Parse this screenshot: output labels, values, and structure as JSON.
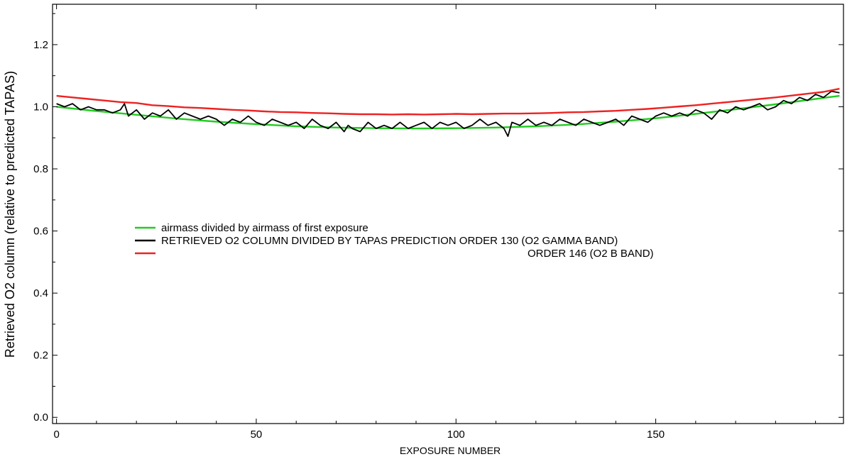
{
  "chart_data": {
    "type": "line",
    "xlabel": "EXPOSURE NUMBER",
    "ylabel": "Retrieved O2 column (relative to predicted TAPAS)",
    "xlim": [
      -1,
      197
    ],
    "ylim": [
      -0.02,
      1.33
    ],
    "xticks": [
      0,
      50,
      100,
      150
    ],
    "yticks": [
      0.0,
      0.2,
      0.4,
      0.6,
      0.8,
      1.0,
      1.2
    ],
    "xtick_labels": [
      "0",
      "50",
      "100",
      "150"
    ],
    "ytick_labels": [
      "0.0",
      "0.2",
      "0.4",
      "0.6",
      "0.8",
      "1.0",
      "1.2"
    ],
    "grid": false,
    "legend_position": "center-left",
    "series": [
      {
        "name": "airmass divided by airmass of first exposure",
        "color": "#22cc22",
        "x": [
          0,
          10,
          20,
          30,
          40,
          50,
          60,
          70,
          80,
          90,
          100,
          110,
          120,
          130,
          140,
          150,
          160,
          170,
          180,
          190,
          196
        ],
        "values": [
          1.0,
          0.986,
          0.974,
          0.962,
          0.952,
          0.944,
          0.937,
          0.933,
          0.931,
          0.93,
          0.931,
          0.933,
          0.937,
          0.943,
          0.952,
          0.963,
          0.977,
          0.992,
          1.008,
          1.025,
          1.035
        ]
      },
      {
        "name": "RETRIEVED O2 COLUMN DIVIDED BY TAPAS PREDICTION ORDER 130 (O2 GAMMA BAND)",
        "color": "#000000",
        "x": [
          0,
          2,
          4,
          6,
          8,
          10,
          12,
          14,
          16,
          17,
          18,
          20,
          22,
          24,
          26,
          28,
          30,
          32,
          34,
          36,
          38,
          40,
          42,
          44,
          46,
          48,
          50,
          52,
          54,
          56,
          58,
          60,
          62,
          64,
          66,
          68,
          70,
          72,
          73,
          74,
          76,
          78,
          80,
          82,
          84,
          86,
          88,
          90,
          92,
          94,
          96,
          98,
          100,
          102,
          104,
          106,
          108,
          110,
          112,
          113,
          114,
          116,
          118,
          120,
          122,
          124,
          126,
          128,
          130,
          132,
          134,
          136,
          138,
          140,
          142,
          144,
          146,
          148,
          150,
          152,
          154,
          156,
          158,
          160,
          162,
          164,
          166,
          168,
          170,
          172,
          174,
          176,
          178,
          180,
          182,
          184,
          186,
          188,
          190,
          192,
          194,
          196
        ],
        "values": [
          1.01,
          1.0,
          1.01,
          0.99,
          1.0,
          0.99,
          0.99,
          0.98,
          0.99,
          1.01,
          0.97,
          0.99,
          0.96,
          0.98,
          0.97,
          0.99,
          0.96,
          0.98,
          0.97,
          0.96,
          0.97,
          0.96,
          0.94,
          0.96,
          0.95,
          0.97,
          0.95,
          0.94,
          0.96,
          0.95,
          0.94,
          0.95,
          0.93,
          0.96,
          0.94,
          0.93,
          0.95,
          0.92,
          0.94,
          0.93,
          0.92,
          0.95,
          0.93,
          0.94,
          0.93,
          0.95,
          0.93,
          0.94,
          0.95,
          0.93,
          0.95,
          0.94,
          0.95,
          0.93,
          0.94,
          0.96,
          0.94,
          0.95,
          0.93,
          0.905,
          0.95,
          0.94,
          0.96,
          0.94,
          0.95,
          0.94,
          0.96,
          0.95,
          0.94,
          0.96,
          0.95,
          0.94,
          0.95,
          0.96,
          0.94,
          0.97,
          0.96,
          0.95,
          0.97,
          0.98,
          0.97,
          0.98,
          0.97,
          0.99,
          0.98,
          0.96,
          0.99,
          0.98,
          1.0,
          0.99,
          1.0,
          1.01,
          0.99,
          1.0,
          1.02,
          1.01,
          1.03,
          1.02,
          1.04,
          1.03,
          1.05,
          1.045
        ]
      },
      {
        "name": "ORDER 146 (O2 B BAND)",
        "color": "#ee2222",
        "x": [
          0,
          4,
          8,
          12,
          16,
          20,
          24,
          28,
          32,
          36,
          40,
          44,
          48,
          52,
          56,
          60,
          64,
          68,
          72,
          76,
          80,
          84,
          88,
          92,
          96,
          100,
          104,
          108,
          112,
          116,
          120,
          124,
          128,
          132,
          136,
          140,
          144,
          148,
          152,
          156,
          160,
          164,
          168,
          172,
          176,
          180,
          184,
          188,
          192,
          196
        ],
        "values": [
          1.035,
          1.03,
          1.025,
          1.02,
          1.015,
          1.012,
          1.005,
          1.002,
          0.998,
          0.996,
          0.993,
          0.99,
          0.988,
          0.985,
          0.983,
          0.982,
          0.98,
          0.979,
          0.977,
          0.976,
          0.976,
          0.975,
          0.976,
          0.975,
          0.976,
          0.977,
          0.976,
          0.977,
          0.978,
          0.978,
          0.979,
          0.98,
          0.982,
          0.983,
          0.985,
          0.987,
          0.99,
          0.993,
          0.997,
          1.001,
          1.005,
          1.01,
          1.015,
          1.02,
          1.025,
          1.03,
          1.036,
          1.042,
          1.048,
          1.058
        ]
      }
    ],
    "legend": [
      {
        "label": "airmass divided by airmass of first exposure",
        "color": "#22cc22"
      },
      {
        "label": "RETRIEVED O2 COLUMN DIVIDED BY TAPAS PREDICTION ORDER 130 (O2 GAMMA BAND)",
        "color": "#000000"
      },
      {
        "label": "ORDER 146 (O2 B BAND)",
        "color": "#ee2222"
      }
    ]
  }
}
